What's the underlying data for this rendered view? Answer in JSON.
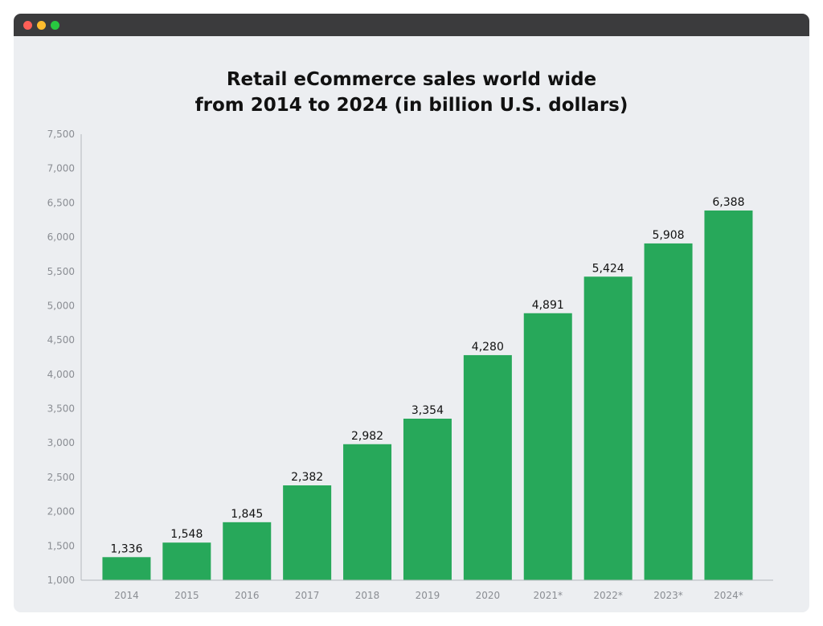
{
  "window": {
    "controls": [
      {
        "name": "close",
        "color": "#ff5f57"
      },
      {
        "name": "minimize",
        "color": "#febc2e"
      },
      {
        "name": "maximize",
        "color": "#28c840"
      }
    ]
  },
  "chart_data": {
    "type": "bar",
    "title_lines": [
      "Retail eCommerce sales world wide",
      "from 2014 to 2024 (in billion U.S. dollars)"
    ],
    "xlabel": "",
    "ylabel": "",
    "categories": [
      "2014",
      "2015",
      "2016",
      "2017",
      "2018",
      "2019",
      "2020",
      "2021*",
      "2022*",
      "2023*",
      "2024*"
    ],
    "values": [
      1336,
      1548,
      1845,
      2382,
      2982,
      3354,
      4280,
      4891,
      5424,
      5908,
      6388
    ],
    "value_labels": [
      "1,336",
      "1,548",
      "1,845",
      "2,382",
      "2,982",
      "3,354",
      "4,280",
      "4,891",
      "5,424",
      "5,908",
      "6,388"
    ],
    "ylim": [
      1000,
      7500
    ],
    "yticks": [
      1000,
      1500,
      2000,
      2500,
      3000,
      3500,
      4000,
      4500,
      5000,
      5500,
      6000,
      6500,
      7000,
      7500
    ],
    "ytick_labels": [
      "1,000",
      "1,500",
      "2,000",
      "2,500",
      "3,000",
      "3,500",
      "4,000",
      "4,500",
      "5,000",
      "5,500",
      "6,000",
      "6,500",
      "7,000",
      "7,500"
    ],
    "bar_color": "#27a85a",
    "grid": false,
    "legend": "none"
  }
}
